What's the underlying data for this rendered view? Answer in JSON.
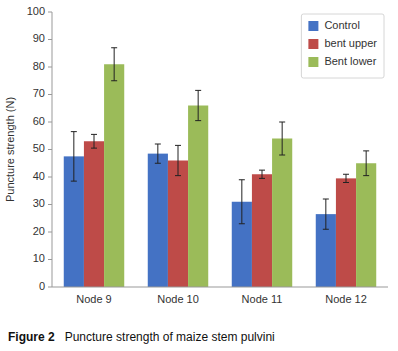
{
  "chart_data": {
    "type": "bar",
    "categories": [
      "Node 9",
      "Node 10",
      "Node 11",
      "Node 12"
    ],
    "series": [
      {
        "name": "Control",
        "color": "#4472C4",
        "values": [
          47.5,
          48.5,
          31.0,
          26.5
        ],
        "errors": [
          9.0,
          3.5,
          8.0,
          5.5
        ]
      },
      {
        "name": "bent upper",
        "color": "#BE4B48",
        "values": [
          53.0,
          46.0,
          41.0,
          39.5
        ],
        "errors": [
          2.5,
          5.5,
          1.5,
          1.5
        ]
      },
      {
        "name": "Bent lower",
        "color": "#9BBB59",
        "values": [
          81.0,
          66.0,
          54.0,
          45.0
        ],
        "errors": [
          6.0,
          5.5,
          6.0,
          4.5
        ]
      }
    ],
    "ylabel": "Puncture strength (N)",
    "ylim": [
      0,
      100
    ],
    "yticks": [
      0,
      10,
      20,
      30,
      40,
      50,
      60,
      70,
      80,
      90,
      100
    ],
    "legend": "upper right",
    "grid": false,
    "caption_label": "Figure 2",
    "caption": "Puncture strength of maize stem pulvini"
  }
}
